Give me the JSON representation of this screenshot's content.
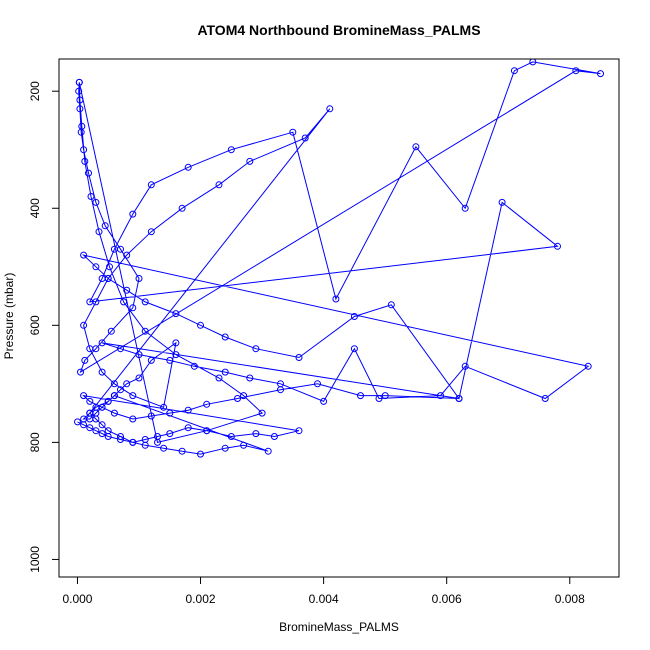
{
  "chart_data": {
    "type": "scatter",
    "title": "ATOM4 Northbound BromineMass_PALMS",
    "xlabel": "BromineMass_PALMS",
    "ylabel": "Pressure (mbar)",
    "xlim": [
      -0.0003,
      0.0088
    ],
    "ylim": [
      1030,
      145
    ],
    "y_reversed": true,
    "x_ticks": [
      {
        "value": 0.0,
        "label": "0.000"
      },
      {
        "value": 0.002,
        "label": "0.002"
      },
      {
        "value": 0.004,
        "label": "0.004"
      },
      {
        "value": 0.006,
        "label": "0.006"
      },
      {
        "value": 0.008,
        "label": "0.008"
      }
    ],
    "y_ticks": [
      {
        "value": 200,
        "label": "200"
      },
      {
        "value": 400,
        "label": "400"
      },
      {
        "value": 600,
        "label": "600"
      },
      {
        "value": 800,
        "label": "800"
      },
      {
        "value": 1000,
        "label": "1000"
      }
    ],
    "grid": false,
    "legend": "none",
    "series_color": "#0000ff",
    "marker": "open-circle",
    "connected": true,
    "x": [
      3e-05,
      4e-05,
      7e-05,
      0.00012,
      0.00022,
      0.00035,
      0.00052,
      0.00075,
      0.0011,
      0.0016,
      0.0023,
      0.0027,
      0.003,
      0.0021,
      0.0013,
      3e-05,
      2e-05,
      4e-05,
      6e-05,
      0.0001,
      0.00018,
      0.0003,
      0.00045,
      0.0007,
      0.001,
      0.0009,
      0.00055,
      0.0003,
      0.00012,
      5e-05,
      0.0081,
      0.0085,
      0.0074,
      0.0071,
      0.0063,
      0.0055,
      0.0042,
      0.0035,
      0.0025,
      0.0018,
      0.0012,
      0.0009,
      0.0006,
      0.0004,
      0.0002,
      0.0078,
      0.0069,
      0.0062,
      0.0051,
      0.0045,
      0.0036,
      0.0029,
      0.0024,
      0.002,
      0.0016,
      0.0011,
      0.0008,
      0.0005,
      0.0003,
      0.0001,
      0.0083,
      0.0076,
      0.0063,
      0.0059,
      0.0049,
      0.0045,
      0.004,
      0.0033,
      0.0028,
      0.0024,
      0.0019,
      0.0015,
      0.001,
      0.0007,
      0.0004,
      0.0062,
      0.005,
      0.0046,
      0.0039,
      0.0033,
      0.0026,
      0.0021,
      0.0018,
      0.0015,
      0.0012,
      0.0009,
      0.0006,
      0.0004,
      0.0002,
      0.0001,
      0.0036,
      0.0032,
      0.0029,
      0.0025,
      0.0021,
      0.0018,
      0.0015,
      0.0013,
      0.0011,
      0.0009,
      0.0007,
      0.0005,
      0.0004,
      0.0003,
      0.0002,
      0.0041,
      0.0037,
      0.0028,
      0.0023,
      0.0017,
      0.0012,
      0.0008,
      0.0005,
      0.0003,
      0.0001,
      0.0002,
      0.0004,
      0.0006,
      0.0009,
      0.0014,
      0.0016,
      0.0012,
      0.001,
      0.0008,
      0.0007,
      0.0006,
      0.0005,
      0.0004,
      0.0003,
      0.0002,
      0.0001,
      0.0002,
      0.0003,
      0.0005,
      0.0006,
      0.0031,
      0.0027,
      0.0024,
      0.002,
      0.0017,
      0.0014,
      0.0011,
      0.0009,
      0.0007,
      0.0005,
      0.0004,
      0.0003,
      0.0002,
      0.0001,
      0.0
    ],
    "y": [
      185,
      215,
      260,
      320,
      380,
      440,
      500,
      560,
      610,
      650,
      690,
      720,
      750,
      780,
      800,
      185,
      200,
      230,
      270,
      300,
      340,
      390,
      430,
      470,
      520,
      570,
      610,
      640,
      660,
      680,
      165,
      170,
      150,
      165,
      400,
      295,
      555,
      270,
      300,
      330,
      360,
      410,
      470,
      520,
      560,
      465,
      390,
      725,
      565,
      585,
      655,
      640,
      620,
      600,
      580,
      560,
      540,
      520,
      500,
      480,
      670,
      725,
      670,
      720,
      725,
      640,
      730,
      700,
      690,
      680,
      670,
      660,
      650,
      640,
      630,
      725,
      720,
      720,
      700,
      710,
      725,
      735,
      745,
      750,
      755,
      760,
      750,
      740,
      730,
      720,
      780,
      790,
      785,
      790,
      780,
      775,
      785,
      790,
      795,
      800,
      790,
      780,
      770,
      760,
      750,
      230,
      280,
      320,
      360,
      400,
      440,
      480,
      520,
      560,
      600,
      640,
      680,
      700,
      720,
      740,
      630,
      660,
      690,
      700,
      710,
      720,
      730,
      740,
      750,
      760,
      760,
      750,
      740,
      730,
      720,
      815,
      805,
      810,
      820,
      815,
      810,
      805,
      800,
      795,
      790,
      785,
      780,
      775,
      770,
      765
    ]
  }
}
